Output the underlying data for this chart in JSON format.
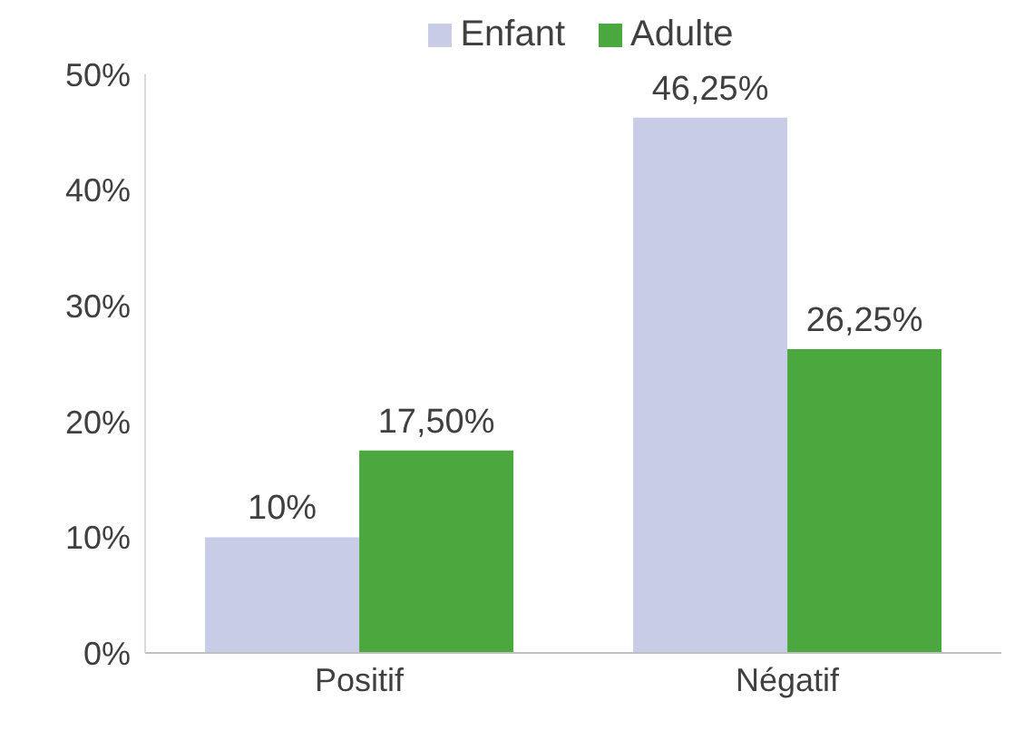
{
  "chart_data": {
    "type": "bar",
    "categories": [
      "Positif",
      "Négatif"
    ],
    "series": [
      {
        "name": "Enfant",
        "color": "#c8cce6",
        "values": [
          10,
          46.25
        ],
        "value_labels": [
          "10%",
          "46,25%"
        ]
      },
      {
        "name": "Adulte",
        "color": "#4aa83e",
        "values": [
          17.5,
          26.25
        ],
        "value_labels": [
          "17,50%",
          "26,25%"
        ]
      }
    ],
    "ylim": [
      0,
      50
    ],
    "yticks": [
      {
        "value": 0,
        "label": "0%"
      },
      {
        "value": 10,
        "label": "10%"
      },
      {
        "value": 20,
        "label": "20%"
      },
      {
        "value": 30,
        "label": "30%"
      },
      {
        "value": 40,
        "label": "40%"
      },
      {
        "value": 50,
        "label": "50%"
      }
    ],
    "grid": false,
    "legend": "top"
  }
}
